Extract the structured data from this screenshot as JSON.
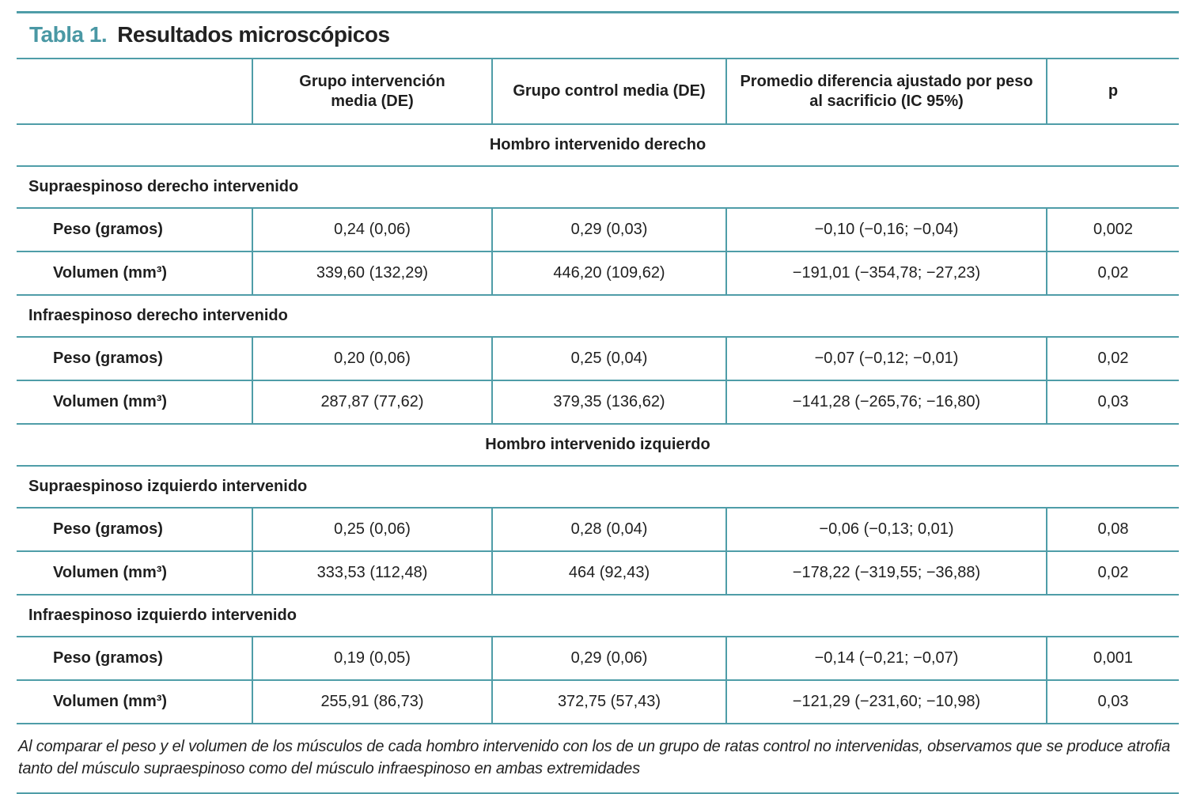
{
  "table": {
    "title_label": "Tabla 1.",
    "title_text": "Resultados microscópicos",
    "columns": [
      "Grupo intervención media (DE)",
      "Grupo control media (DE)",
      "Promedio diferencia ajustado por peso al sacrificio (IC 95%)",
      "p"
    ],
    "sections": [
      {
        "title": "Hombro intervenido derecho",
        "subsections": [
          {
            "title": "Supraespinoso derecho intervenido",
            "rows": [
              {
                "label": "Peso (gramos)",
                "values": [
                  "0,24 (0,06)",
                  "0,29 (0,03)",
                  "−0,10 (−0,16; −0,04)",
                  "0,002"
                ]
              },
              {
                "label": "Volumen (mm³)",
                "values": [
                  "339,60 (132,29)",
                  "446,20 (109,62)",
                  "−191,01 (−354,78; −27,23)",
                  "0,02"
                ]
              }
            ]
          },
          {
            "title": "Infraespinoso derecho intervenido",
            "rows": [
              {
                "label": "Peso (gramos)",
                "values": [
                  "0,20 (0,06)",
                  "0,25 (0,04)",
                  "−0,07 (−0,12; −0,01)",
                  "0,02"
                ]
              },
              {
                "label": "Volumen (mm³)",
                "values": [
                  "287,87 (77,62)",
                  "379,35 (136,62)",
                  "−141,28 (−265,76; −16,80)",
                  "0,03"
                ]
              }
            ]
          }
        ]
      },
      {
        "title": "Hombro intervenido izquierdo",
        "subsections": [
          {
            "title": "Supraespinoso izquierdo intervenido",
            "rows": [
              {
                "label": "Peso (gramos)",
                "values": [
                  "0,25 (0,06)",
                  "0,28 (0,04)",
                  "−0,06 (−0,13; 0,01)",
                  "0,08"
                ]
              },
              {
                "label": "Volumen (mm³)",
                "values": [
                  "333,53 (112,48)",
                  "464 (92,43)",
                  "−178,22 (−319,55; −36,88)",
                  "0,02"
                ]
              }
            ]
          },
          {
            "title": "Infraespinoso izquierdo intervenido",
            "rows": [
              {
                "label": "Peso (gramos)",
                "values": [
                  "0,19 (0,05)",
                  "0,29 (0,06)",
                  "−0,14 (−0,21; −0,07)",
                  "0,001"
                ]
              },
              {
                "label": "Volumen (mm³)",
                "values": [
                  "255,91 (86,73)",
                  "372,75 (57,43)",
                  "−121,29 (−231,60; −10,98)",
                  "0,03"
                ]
              }
            ]
          }
        ]
      }
    ],
    "footnote": "Al comparar el peso y el volumen de los músculos de cada hombro intervenido con los de un grupo de ratas control no intervenidas, observamos que se produce atrofia tanto del músculo supraespinoso como del músculo infraespinoso en ambas extremidades"
  },
  "colors": {
    "accent_teal": "#4a98a4",
    "rule_teal": "#4f9da8",
    "text_dark": "#1f1f1f"
  }
}
